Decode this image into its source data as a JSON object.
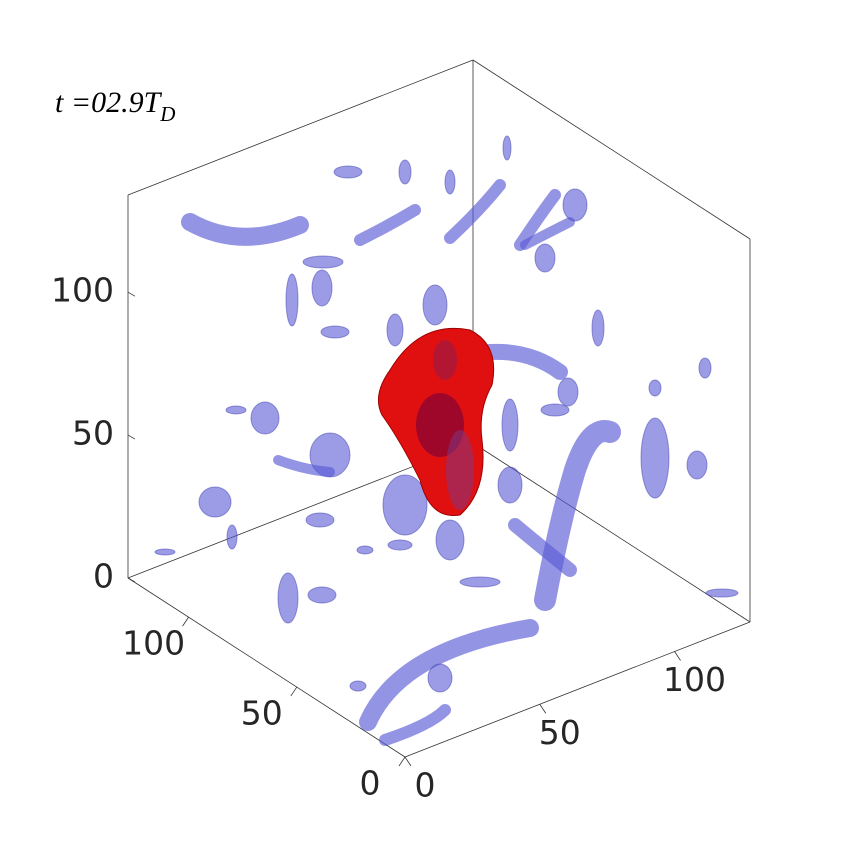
{
  "chart_data": {
    "type": "isosurface3d",
    "annotation": {
      "text": "t =02.9T",
      "subscript": "D"
    },
    "xlim": [
      0,
      128
    ],
    "xticks": [
      0,
      50,
      100
    ],
    "ylim": [
      0,
      128
    ],
    "yticks": [
      0,
      50,
      100
    ],
    "zlim": [
      0,
      134
    ],
    "zticks": [
      0,
      50,
      100
    ],
    "box": true
  }
}
